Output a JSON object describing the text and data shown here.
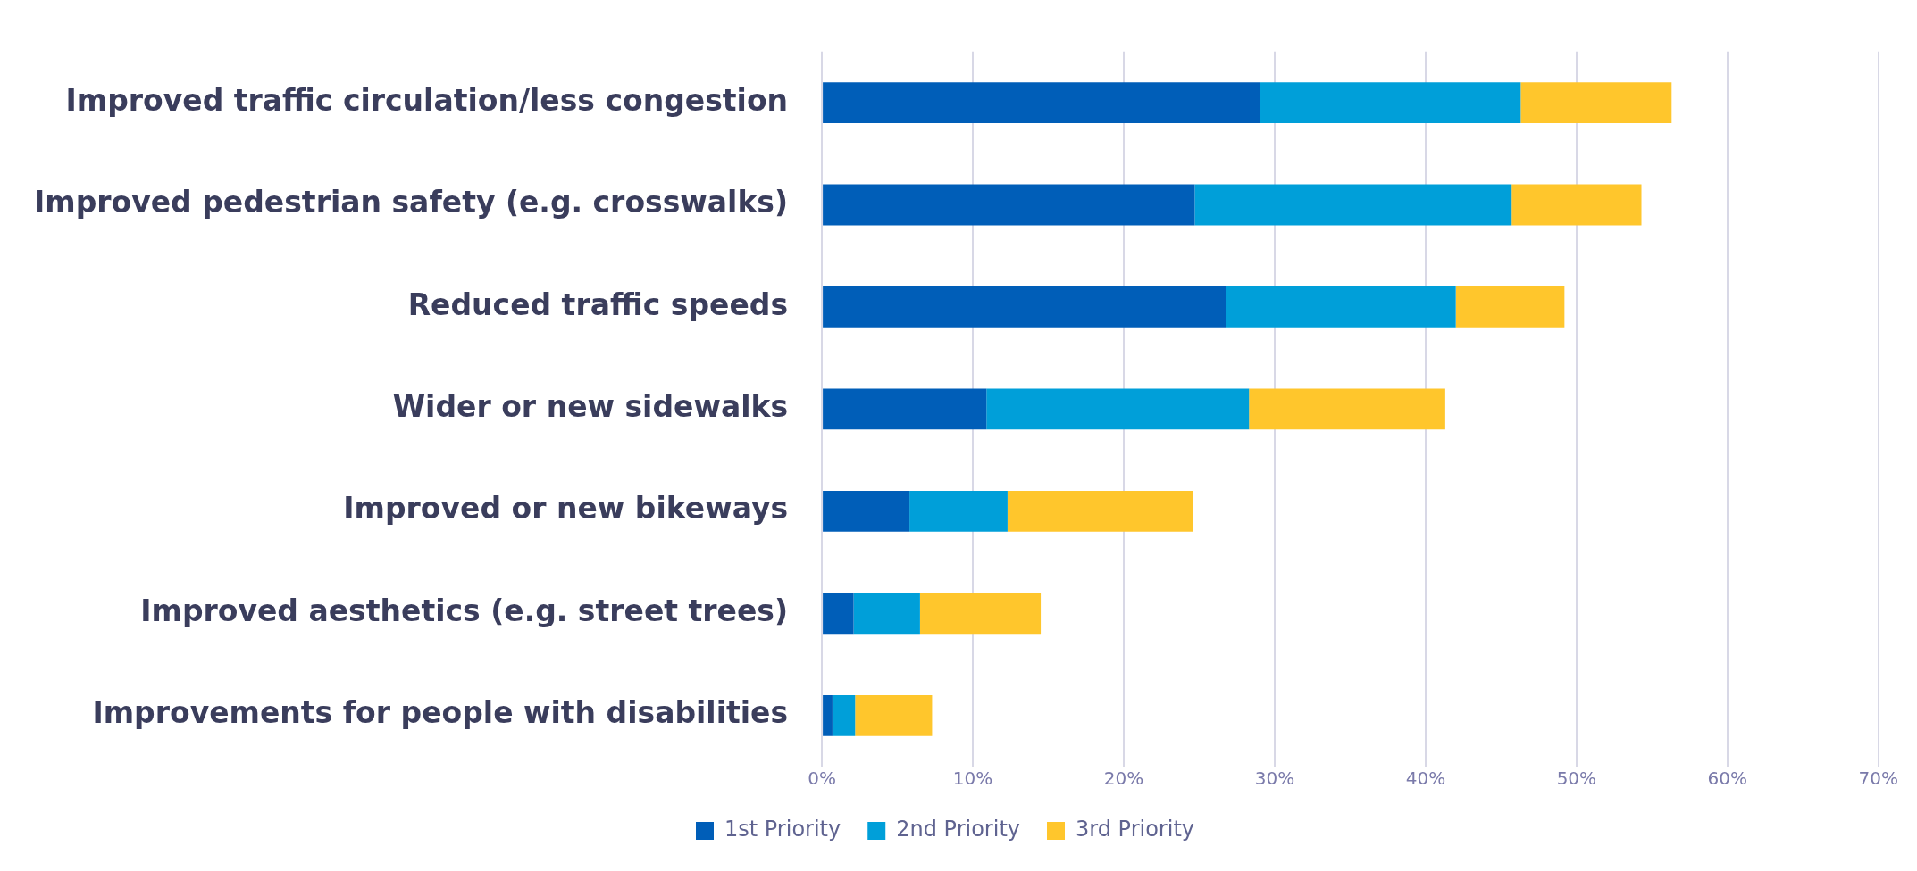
{
  "chart_data": {
    "type": "bar",
    "orientation": "horizontal",
    "stacked": true,
    "categories": [
      "Improved traffic circulation/less congestion",
      "Improved pedestrian safety (e.g. crosswalks)",
      "Reduced traffic speeds",
      "Wider or new sidewalks",
      "Improved or new bikeways",
      "Improved aesthetics (e.g. street trees)",
      "Improvements for people with disabilities"
    ],
    "series": [
      {
        "name": "1st Priority",
        "color": "#005eb8",
        "values": [
          29.0,
          24.7,
          26.8,
          10.9,
          5.8,
          2.1,
          0.7
        ]
      },
      {
        "name": "2nd Priority",
        "color": "#009fd9",
        "values": [
          17.3,
          21.0,
          15.2,
          17.4,
          6.5,
          4.4,
          1.5
        ]
      },
      {
        "name": "3rd Priority",
        "color": "#ffc62c",
        "values": [
          10.0,
          8.6,
          7.2,
          13.0,
          12.3,
          8.0,
          5.1
        ]
      }
    ],
    "xlim": [
      0,
      70
    ],
    "xticks": [
      {
        "value": 0,
        "label": "0%"
      },
      {
        "value": 10,
        "label": "10%"
      },
      {
        "value": 20,
        "label": "20%"
      },
      {
        "value": 30,
        "label": "30%"
      },
      {
        "value": 40,
        "label": "40%"
      },
      {
        "value": 50,
        "label": "50%"
      },
      {
        "value": 60,
        "label": "60%"
      },
      {
        "value": 70,
        "label": "70%"
      }
    ],
    "grid": "x",
    "legend": "bottom"
  }
}
